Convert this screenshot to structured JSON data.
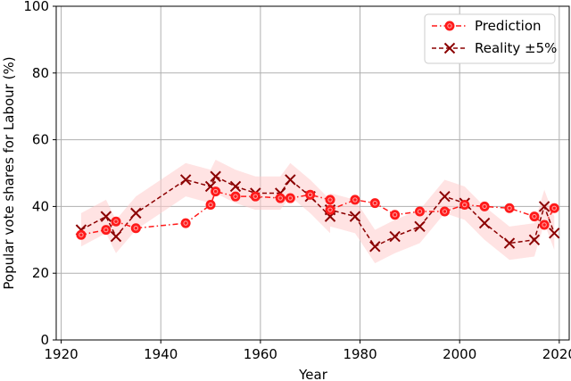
{
  "chart_data": {
    "type": "line",
    "xlabel": "Year",
    "ylabel": "Popular vote shares for Labour (%)",
    "xlim": [
      1919,
      2022
    ],
    "ylim": [
      0,
      100
    ],
    "xticks": [
      1920,
      1940,
      1960,
      1980,
      2000,
      2020
    ],
    "yticks": [
      0,
      20,
      40,
      60,
      80,
      100
    ],
    "grid": true,
    "legend_position": "top-right",
    "colors": {
      "prediction": "#ff1a1a",
      "reality": "#8b0000",
      "band": "#ffcccc"
    },
    "series": [
      {
        "name": "Prediction",
        "marker": "circle",
        "linestyle": "dash-dot",
        "x": [
          1924,
          1929,
          1931,
          1935,
          1945,
          1950,
          1951,
          1955,
          1959,
          1964,
          1966,
          1970,
          1974,
          1974,
          1979,
          1983,
          1987,
          1992,
          1997,
          2001,
          2005,
          2010,
          2015,
          2017,
          2019
        ],
        "y": [
          31.5,
          33,
          35.5,
          33.5,
          35,
          40.5,
          44.5,
          43,
          43,
          42.5,
          42.5,
          43.5,
          42,
          39,
          42,
          41,
          37.5,
          38.5,
          38.5,
          40.5,
          40,
          39.5,
          37,
          34.5,
          39.5
        ]
      },
      {
        "name": "Reality ±5%",
        "marker": "x",
        "linestyle": "dashed",
        "x": [
          1924,
          1929,
          1931,
          1935,
          1945,
          1950,
          1951,
          1955,
          1959,
          1964,
          1966,
          1970,
          1974,
          1974,
          1979,
          1983,
          1987,
          1992,
          1997,
          2001,
          2005,
          2010,
          2015,
          2017,
          2019
        ],
        "y": [
          33,
          37,
          31,
          38,
          48,
          46,
          49,
          46,
          44,
          44,
          48,
          43,
          37,
          39,
          37,
          28,
          31,
          34,
          43,
          41,
          35,
          29,
          30,
          40,
          32
        ]
      }
    ]
  }
}
